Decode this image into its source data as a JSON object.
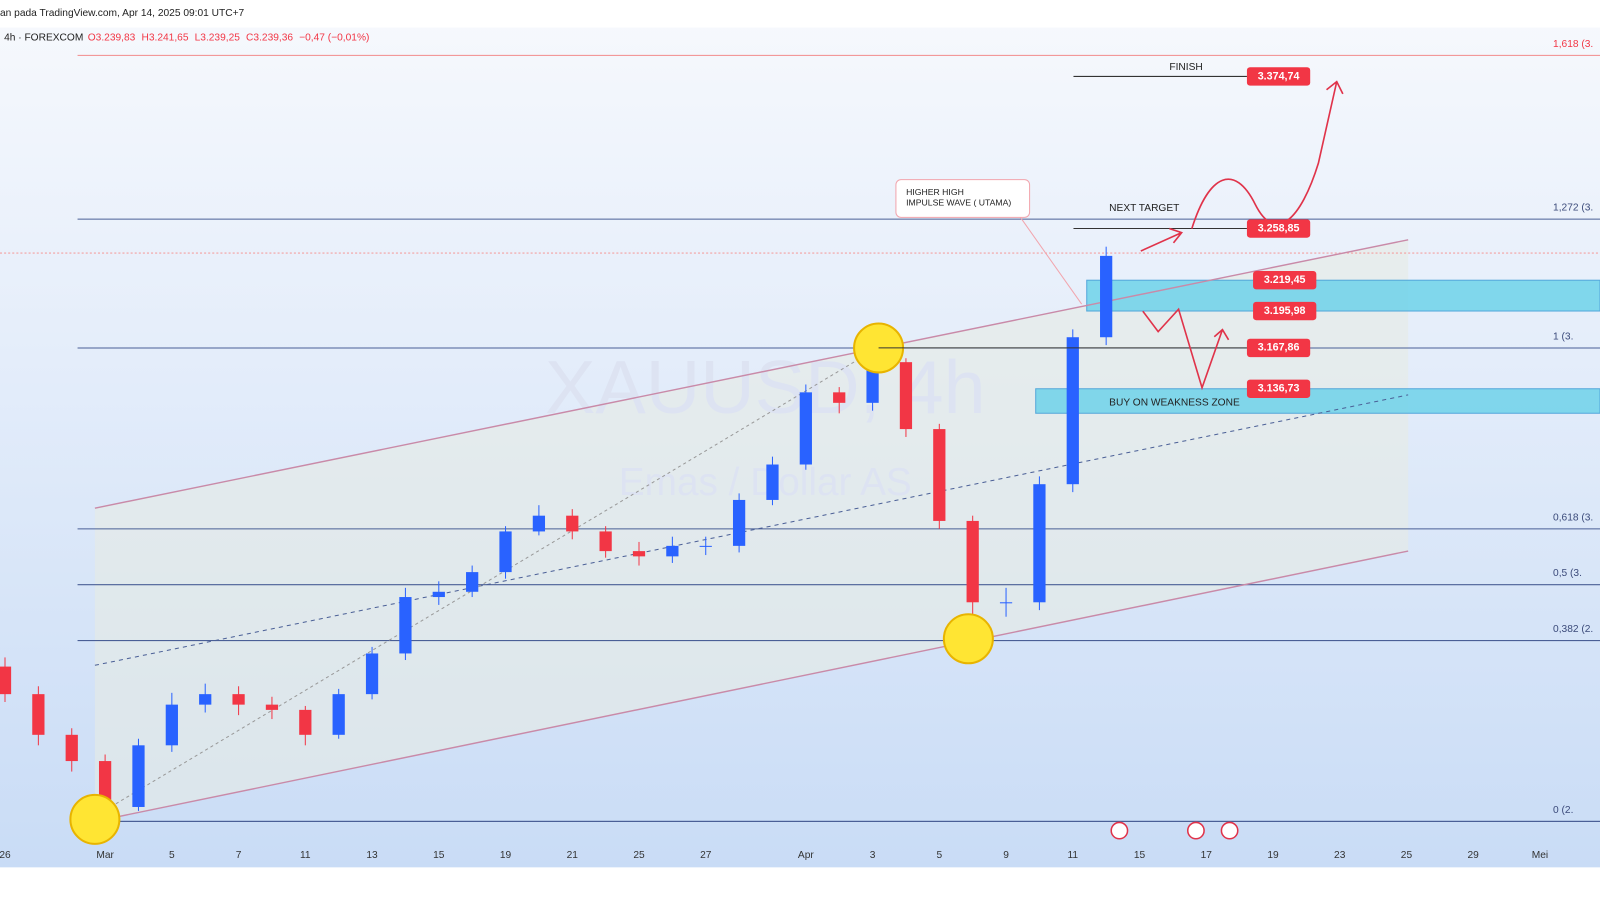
{
  "header": {
    "source": "an pada TradingView.com, Apr 14, 2025 09:01 UTC+7",
    "symbol": "4h · FOREXCOM",
    "ohlc": [
      "O3.239,83",
      "H3.241,65",
      "L3.239,25",
      "C3.239,36",
      "−0,47 (−0,01%)"
    ]
  },
  "chart_data": {
    "type": "candlestick",
    "watermark": "XAUUSD, 4h",
    "watermark_subtitle": "Emas / Dollar AS",
    "open": [
      2925,
      2904,
      2873,
      2853,
      2818,
      2865,
      2896,
      2904,
      2896,
      2892,
      2873,
      2904,
      2935,
      2978,
      2982,
      2997,
      3028,
      3040,
      3028,
      3013,
      3009,
      3017,
      3017,
      3052,
      3079,
      3134,
      3126,
      3157,
      3106,
      3036,
      2974,
      2974,
      3064,
      3176
    ],
    "high": [
      2932,
      2910,
      2878,
      2858,
      2870,
      2905,
      2912,
      2910,
      2902,
      2895,
      2908,
      2940,
      2985,
      2990,
      3002,
      3032,
      3048,
      3045,
      3032,
      3020,
      3024,
      3024,
      3057,
      3085,
      3140,
      3138,
      3168,
      3160,
      3110,
      3040,
      2985,
      3070,
      3182,
      3245
    ],
    "low": [
      2898,
      2865,
      2845,
      2806,
      2815,
      2860,
      2890,
      2888,
      2885,
      2865,
      2870,
      2900,
      2930,
      2972,
      2978,
      2992,
      3025,
      3022,
      3008,
      3002,
      3004,
      3010,
      3012,
      3048,
      3075,
      3118,
      3120,
      3100,
      3030,
      2955,
      2963,
      2968,
      3058,
      3170
    ],
    "close": [
      2904,
      2873,
      2853,
      2818,
      2865,
      2896,
      2904,
      2896,
      2892,
      2873,
      2904,
      2935,
      2978,
      2982,
      2997,
      3028,
      3040,
      3028,
      3013,
      3009,
      3017,
      3017,
      3052,
      3079,
      3134,
      3126,
      3157,
      3106,
      3036,
      2974,
      2974,
      3064,
      3176,
      3238
    ],
    "up_color": "#2962ff",
    "down_color": "#f23645",
    "ylim": [
      2772,
      3433
    ],
    "xlim": [
      -0.15,
      47.8
    ],
    "xticks": [
      {
        "value": 0,
        "label": "26"
      },
      {
        "value": 3,
        "label": "Mar"
      },
      {
        "value": 5,
        "label": "5"
      },
      {
        "value": 7,
        "label": "7"
      },
      {
        "value": 9,
        "label": "11"
      },
      {
        "value": 11,
        "label": "13"
      },
      {
        "value": 13,
        "label": "15"
      },
      {
        "value": 15,
        "label": "19"
      },
      {
        "value": 17,
        "label": "21"
      },
      {
        "value": 19,
        "label": "25"
      },
      {
        "value": 21,
        "label": "27"
      },
      {
        "value": 24,
        "label": "Apr"
      },
      {
        "value": 26,
        "label": "3"
      },
      {
        "value": 28,
        "label": "5"
      },
      {
        "value": 30,
        "label": "9"
      },
      {
        "value": 32,
        "label": "11"
      },
      {
        "value": 34,
        "label": "15"
      },
      {
        "value": 36,
        "label": "17"
      },
      {
        "value": 38,
        "label": "19"
      },
      {
        "value": 40,
        "label": "23"
      },
      {
        "value": 42,
        "label": "25"
      },
      {
        "value": 44,
        "label": "29"
      },
      {
        "value": 46,
        "label": "Mei"
      }
    ],
    "fib_levels": [
      {
        "value": 1.618,
        "label": "1,618 (3."
      },
      {
        "value": 1.272,
        "label": "1,272 (3."
      },
      {
        "value": 1,
        "label": "1 (3."
      },
      {
        "value": 0.618,
        "label": "0,618 (3."
      },
      {
        "value": 0.5,
        "label": "0,5 (3."
      },
      {
        "value": 0.382,
        "label": "0,382 (2."
      },
      {
        "value": 0,
        "label": "0 (2."
      }
    ],
    "price_levels": {
      "values": [
        3374.74,
        3258.85,
        3219.45,
        3195.98,
        3167.86,
        3136.73
      ],
      "value_labels": [
        "3.374,74",
        "3.258,85",
        "3.219,45",
        "3.195,98",
        "3.167,86",
        "3.136,73"
      ]
    },
    "annotations": {
      "finish": "FINISH",
      "next_target": "NEXT TARGET",
      "higher_high": [
        "HIGHER HIGH",
        "IMPULSE WAVE ( UTAMA)"
      ],
      "buy_zone": "BUY ON WEAKNESS ZONE"
    }
  }
}
